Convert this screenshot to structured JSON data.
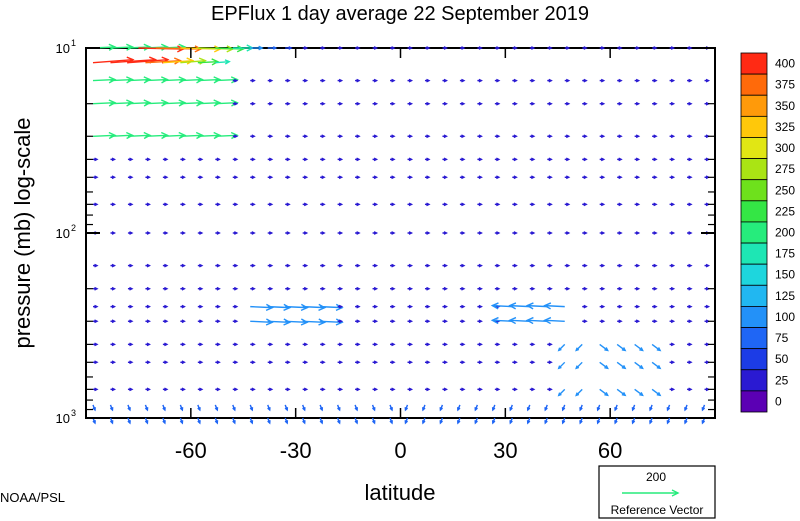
{
  "chart_data": {
    "type": "vector-field",
    "title": "EPFlux  1 day average  22 September 2019",
    "xlabel": "latitude",
    "ylabel": "pressure (mb)  log-scale",
    "xlim": [
      -90,
      90
    ],
    "ylim": [
      1000,
      10
    ],
    "yscale": "log",
    "x_ticks": [
      -60,
      -30,
      0,
      30,
      60
    ],
    "x_tick_labels": [
      "-60",
      "-30",
      "0",
      "30",
      "60"
    ],
    "y_ticks": [
      {
        "value": 10,
        "base": "10",
        "exp": "1"
      },
      {
        "value": 100,
        "base": "10",
        "exp": "2"
      },
      {
        "value": 1000,
        "base": "10",
        "exp": "3"
      }
    ],
    "colorbar": {
      "levels": [
        "0",
        "25",
        "50",
        "75",
        "100",
        "125",
        "150",
        "175",
        "200",
        "225",
        "250",
        "275",
        "300",
        "325",
        "350",
        "375",
        "400"
      ],
      "colors": [
        "#5b00b4",
        "#2a1ad2",
        "#1c3ce6",
        "#1f66f5",
        "#2391f8",
        "#21b7f1",
        "#1ed6dd",
        "#1ee6b4",
        "#26ec7c",
        "#34e645",
        "#6ee11c",
        "#aae414",
        "#e1e614",
        "#ffc80a",
        "#ff9a0a",
        "#ff6a0a",
        "#ff2a14"
      ]
    },
    "reference_vector": {
      "magnitude": "200",
      "label": "Reference Vector",
      "color": "#26ec7c"
    },
    "credit": "NOAA/PSL",
    "lat_grid": [
      -88,
      -83,
      -78,
      -73,
      -68,
      -63,
      -58,
      -53,
      -48,
      -43,
      -38,
      -33,
      -28,
      -23,
      -18,
      -13,
      -8,
      -3,
      2,
      7,
      12,
      17,
      22,
      27,
      32,
      37,
      42,
      47,
      52,
      57,
      62,
      67,
      72,
      77,
      82,
      87
    ],
    "levels_mb": [
      10,
      15,
      20,
      30,
      40,
      50,
      70,
      100,
      150,
      200,
      250,
      300,
      400,
      500,
      700,
      850,
      1000
    ],
    "vectors": [
      {
        "lat": -75,
        "p": 10,
        "u": 45,
        "v": -1,
        "m": 400
      },
      {
        "lat": -70,
        "p": 10,
        "u": 45,
        "v": -1,
        "m": 380
      },
      {
        "lat": -63,
        "p": 10,
        "u": 40,
        "v": -1,
        "m": 330
      },
      {
        "lat": -58,
        "p": 10,
        "u": 35,
        "v": -1,
        "m": 280
      },
      {
        "lat": -53,
        "p": 10,
        "u": 28,
        "v": -1,
        "m": 230
      },
      {
        "lat": -48,
        "p": 10,
        "u": 20,
        "v": 0,
        "m": 180
      },
      {
        "lat": -43,
        "p": 10,
        "u": 12,
        "v": 0,
        "m": 120
      },
      {
        "lat": -38,
        "p": 10,
        "u": 8,
        "v": 0,
        "m": 90
      },
      {
        "lat": -33,
        "p": 10,
        "u": 6,
        "v": 0,
        "m": 60
      },
      {
        "lat": -88,
        "p": 12,
        "u": 40,
        "v": 3,
        "m": 400
      },
      {
        "lat": -83,
        "p": 12,
        "u": 45,
        "v": 3,
        "m": 400
      },
      {
        "lat": -78,
        "p": 12,
        "u": 40,
        "v": 3,
        "m": 400
      },
      {
        "lat": -73,
        "p": 12,
        "u": 35,
        "v": 2,
        "m": 380
      },
      {
        "lat": -68,
        "p": 12,
        "u": 30,
        "v": 2,
        "m": 330
      },
      {
        "lat": -63,
        "p": 12,
        "u": 25,
        "v": 2,
        "m": 280
      },
      {
        "lat": -58,
        "p": 12,
        "u": 20,
        "v": 1,
        "m": 230
      },
      {
        "lat": -53,
        "p": 12,
        "u": 14,
        "v": 1,
        "m": 180
      }
    ]
  }
}
